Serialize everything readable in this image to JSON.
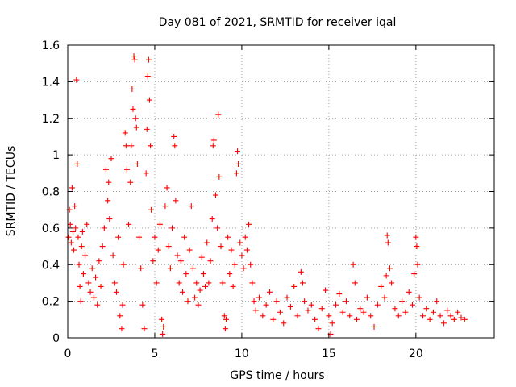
{
  "chart_data": {
    "type": "scatter",
    "title": "Day 081 of 2021, SRMTID for receiver iqal",
    "xlabel": "GPS time / hours",
    "ylabel": "SRMTID / TECUs",
    "xlim": [
      0,
      24.5
    ],
    "ylim": [
      0,
      1.6
    ],
    "x_ticks": [
      0,
      5,
      10,
      15,
      20
    ],
    "x_tick_labels": [
      "0",
      "5",
      "10",
      "15",
      "20"
    ],
    "y_ticks": [
      0,
      0.2,
      0.4,
      0.6,
      0.8,
      1.0,
      1.2,
      1.4,
      1.6
    ],
    "y_tick_labels": [
      "0",
      "0.2",
      "0.4",
      "0.6",
      "0.8",
      "1",
      "1.2",
      "1.4",
      "1.6"
    ],
    "grid": true,
    "marker": "+",
    "series": [
      {
        "name": "SRMTID",
        "color": "#ff0000",
        "points": [
          [
            0.05,
            0.55
          ],
          [
            0.1,
            0.7
          ],
          [
            0.15,
            0.62
          ],
          [
            0.2,
            0.52
          ],
          [
            0.25,
            0.82
          ],
          [
            0.3,
            0.58
          ],
          [
            0.35,
            0.48
          ],
          [
            0.4,
            0.72
          ],
          [
            0.45,
            0.6
          ],
          [
            0.5,
            1.41
          ],
          [
            0.55,
            0.95
          ],
          [
            0.6,
            0.55
          ],
          [
            0.65,
            0.4
          ],
          [
            0.7,
            0.28
          ],
          [
            0.75,
            0.2
          ],
          [
            0.8,
            0.5
          ],
          [
            0.85,
            0.58
          ],
          [
            0.9,
            0.35
          ],
          [
            1.0,
            0.45
          ],
          [
            1.1,
            0.62
          ],
          [
            1.2,
            0.3
          ],
          [
            1.3,
            0.25
          ],
          [
            1.4,
            0.38
          ],
          [
            1.5,
            0.22
          ],
          [
            1.6,
            0.33
          ],
          [
            1.7,
            0.18
          ],
          [
            1.8,
            0.42
          ],
          [
            1.9,
            0.28
          ],
          [
            2.0,
            0.5
          ],
          [
            2.1,
            0.6
          ],
          [
            2.2,
            0.92
          ],
          [
            2.3,
            0.75
          ],
          [
            2.35,
            0.85
          ],
          [
            2.4,
            0.65
          ],
          [
            2.5,
            0.98
          ],
          [
            2.6,
            0.45
          ],
          [
            2.7,
            0.3
          ],
          [
            2.8,
            0.25
          ],
          [
            2.9,
            0.55
          ],
          [
            3.0,
            0.12
          ],
          [
            3.1,
            0.05
          ],
          [
            3.15,
            0.18
          ],
          [
            3.2,
            0.4
          ],
          [
            3.3,
            1.12
          ],
          [
            3.35,
            1.05
          ],
          [
            3.4,
            0.92
          ],
          [
            3.5,
            0.62
          ],
          [
            3.6,
            0.85
          ],
          [
            3.65,
            1.05
          ],
          [
            3.7,
            1.36
          ],
          [
            3.75,
            1.25
          ],
          [
            3.8,
            1.54
          ],
          [
            3.85,
            1.52
          ],
          [
            3.9,
            1.2
          ],
          [
            3.95,
            1.15
          ],
          [
            4.0,
            0.95
          ],
          [
            4.1,
            0.55
          ],
          [
            4.2,
            0.38
          ],
          [
            4.3,
            0.18
          ],
          [
            4.4,
            0.05
          ],
          [
            4.5,
            0.9
          ],
          [
            4.55,
            1.14
          ],
          [
            4.6,
            1.43
          ],
          [
            4.65,
            1.52
          ],
          [
            4.7,
            1.3
          ],
          [
            4.75,
            1.05
          ],
          [
            4.8,
            0.7
          ],
          [
            4.9,
            0.42
          ],
          [
            5.0,
            0.55
          ],
          [
            5.1,
            0.3
          ],
          [
            5.2,
            0.48
          ],
          [
            5.3,
            0.62
          ],
          [
            5.4,
            0.1
          ],
          [
            5.45,
            0.02
          ],
          [
            5.5,
            0.06
          ],
          [
            5.6,
            0.72
          ],
          [
            5.7,
            0.82
          ],
          [
            5.8,
            0.5
          ],
          [
            5.9,
            0.38
          ],
          [
            6.0,
            0.6
          ],
          [
            6.1,
            1.1
          ],
          [
            6.15,
            1.05
          ],
          [
            6.2,
            0.75
          ],
          [
            6.3,
            0.45
          ],
          [
            6.4,
            0.3
          ],
          [
            6.5,
            0.42
          ],
          [
            6.6,
            0.25
          ],
          [
            6.7,
            0.55
          ],
          [
            6.8,
            0.35
          ],
          [
            6.9,
            0.2
          ],
          [
            7.0,
            0.48
          ],
          [
            7.1,
            0.72
          ],
          [
            7.2,
            0.38
          ],
          [
            7.3,
            0.22
          ],
          [
            7.4,
            0.3
          ],
          [
            7.5,
            0.18
          ],
          [
            7.6,
            0.26
          ],
          [
            7.7,
            0.44
          ],
          [
            7.8,
            0.35
          ],
          [
            7.9,
            0.28
          ],
          [
            8.0,
            0.52
          ],
          [
            8.1,
            0.3
          ],
          [
            8.2,
            0.42
          ],
          [
            8.3,
            0.65
          ],
          [
            8.35,
            1.05
          ],
          [
            8.4,
            1.08
          ],
          [
            8.5,
            0.78
          ],
          [
            8.6,
            0.6
          ],
          [
            8.65,
            1.22
          ],
          [
            8.7,
            0.88
          ],
          [
            8.8,
            0.5
          ],
          [
            8.9,
            0.3
          ],
          [
            9.0,
            0.12
          ],
          [
            9.05,
            0.05
          ],
          [
            9.1,
            0.1
          ],
          [
            9.2,
            0.55
          ],
          [
            9.3,
            0.35
          ],
          [
            9.4,
            0.48
          ],
          [
            9.5,
            0.28
          ],
          [
            9.6,
            0.4
          ],
          [
            9.7,
            0.9
          ],
          [
            9.75,
            1.02
          ],
          [
            9.8,
            0.95
          ],
          [
            9.9,
            0.52
          ],
          [
            10.0,
            0.45
          ],
          [
            10.1,
            0.38
          ],
          [
            10.2,
            0.55
          ],
          [
            10.3,
            0.48
          ],
          [
            10.4,
            0.62
          ],
          [
            10.5,
            0.4
          ],
          [
            10.6,
            0.3
          ],
          [
            10.7,
            0.2
          ],
          [
            10.8,
            0.15
          ],
          [
            11.0,
            0.22
          ],
          [
            11.2,
            0.12
          ],
          [
            11.4,
            0.18
          ],
          [
            11.6,
            0.25
          ],
          [
            11.8,
            0.1
          ],
          [
            12.0,
            0.2
          ],
          [
            12.2,
            0.14
          ],
          [
            12.4,
            0.08
          ],
          [
            12.6,
            0.22
          ],
          [
            12.8,
            0.17
          ],
          [
            13.0,
            0.28
          ],
          [
            13.2,
            0.12
          ],
          [
            13.4,
            0.36
          ],
          [
            13.5,
            0.3
          ],
          [
            13.6,
            0.2
          ],
          [
            13.8,
            0.15
          ],
          [
            14.0,
            0.18
          ],
          [
            14.2,
            0.1
          ],
          [
            14.4,
            0.05
          ],
          [
            14.6,
            0.16
          ],
          [
            14.8,
            0.26
          ],
          [
            15.0,
            0.12
          ],
          [
            15.1,
            0.02
          ],
          [
            15.2,
            0.08
          ],
          [
            15.4,
            0.18
          ],
          [
            15.6,
            0.24
          ],
          [
            15.8,
            0.14
          ],
          [
            16.0,
            0.2
          ],
          [
            16.2,
            0.12
          ],
          [
            16.4,
            0.4
          ],
          [
            16.5,
            0.3
          ],
          [
            16.6,
            0.1
          ],
          [
            16.8,
            0.16
          ],
          [
            17.0,
            0.14
          ],
          [
            17.2,
            0.22
          ],
          [
            17.4,
            0.12
          ],
          [
            17.6,
            0.06
          ],
          [
            17.8,
            0.18
          ],
          [
            18.0,
            0.28
          ],
          [
            18.2,
            0.22
          ],
          [
            18.3,
            0.34
          ],
          [
            18.35,
            0.56
          ],
          [
            18.4,
            0.52
          ],
          [
            18.5,
            0.38
          ],
          [
            18.6,
            0.3
          ],
          [
            18.8,
            0.16
          ],
          [
            19.0,
            0.12
          ],
          [
            19.2,
            0.2
          ],
          [
            19.4,
            0.14
          ],
          [
            19.6,
            0.25
          ],
          [
            19.8,
            0.18
          ],
          [
            19.9,
            0.35
          ],
          [
            20.0,
            0.55
          ],
          [
            20.05,
            0.5
          ],
          [
            20.1,
            0.4
          ],
          [
            20.2,
            0.22
          ],
          [
            20.4,
            0.12
          ],
          [
            20.6,
            0.16
          ],
          [
            20.8,
            0.1
          ],
          [
            21.0,
            0.14
          ],
          [
            21.2,
            0.2
          ],
          [
            21.4,
            0.12
          ],
          [
            21.6,
            0.08
          ],
          [
            21.8,
            0.15
          ],
          [
            22.0,
            0.12
          ],
          [
            22.2,
            0.1
          ],
          [
            22.4,
            0.14
          ],
          [
            22.6,
            0.11
          ],
          [
            22.8,
            0.1
          ]
        ]
      }
    ]
  }
}
